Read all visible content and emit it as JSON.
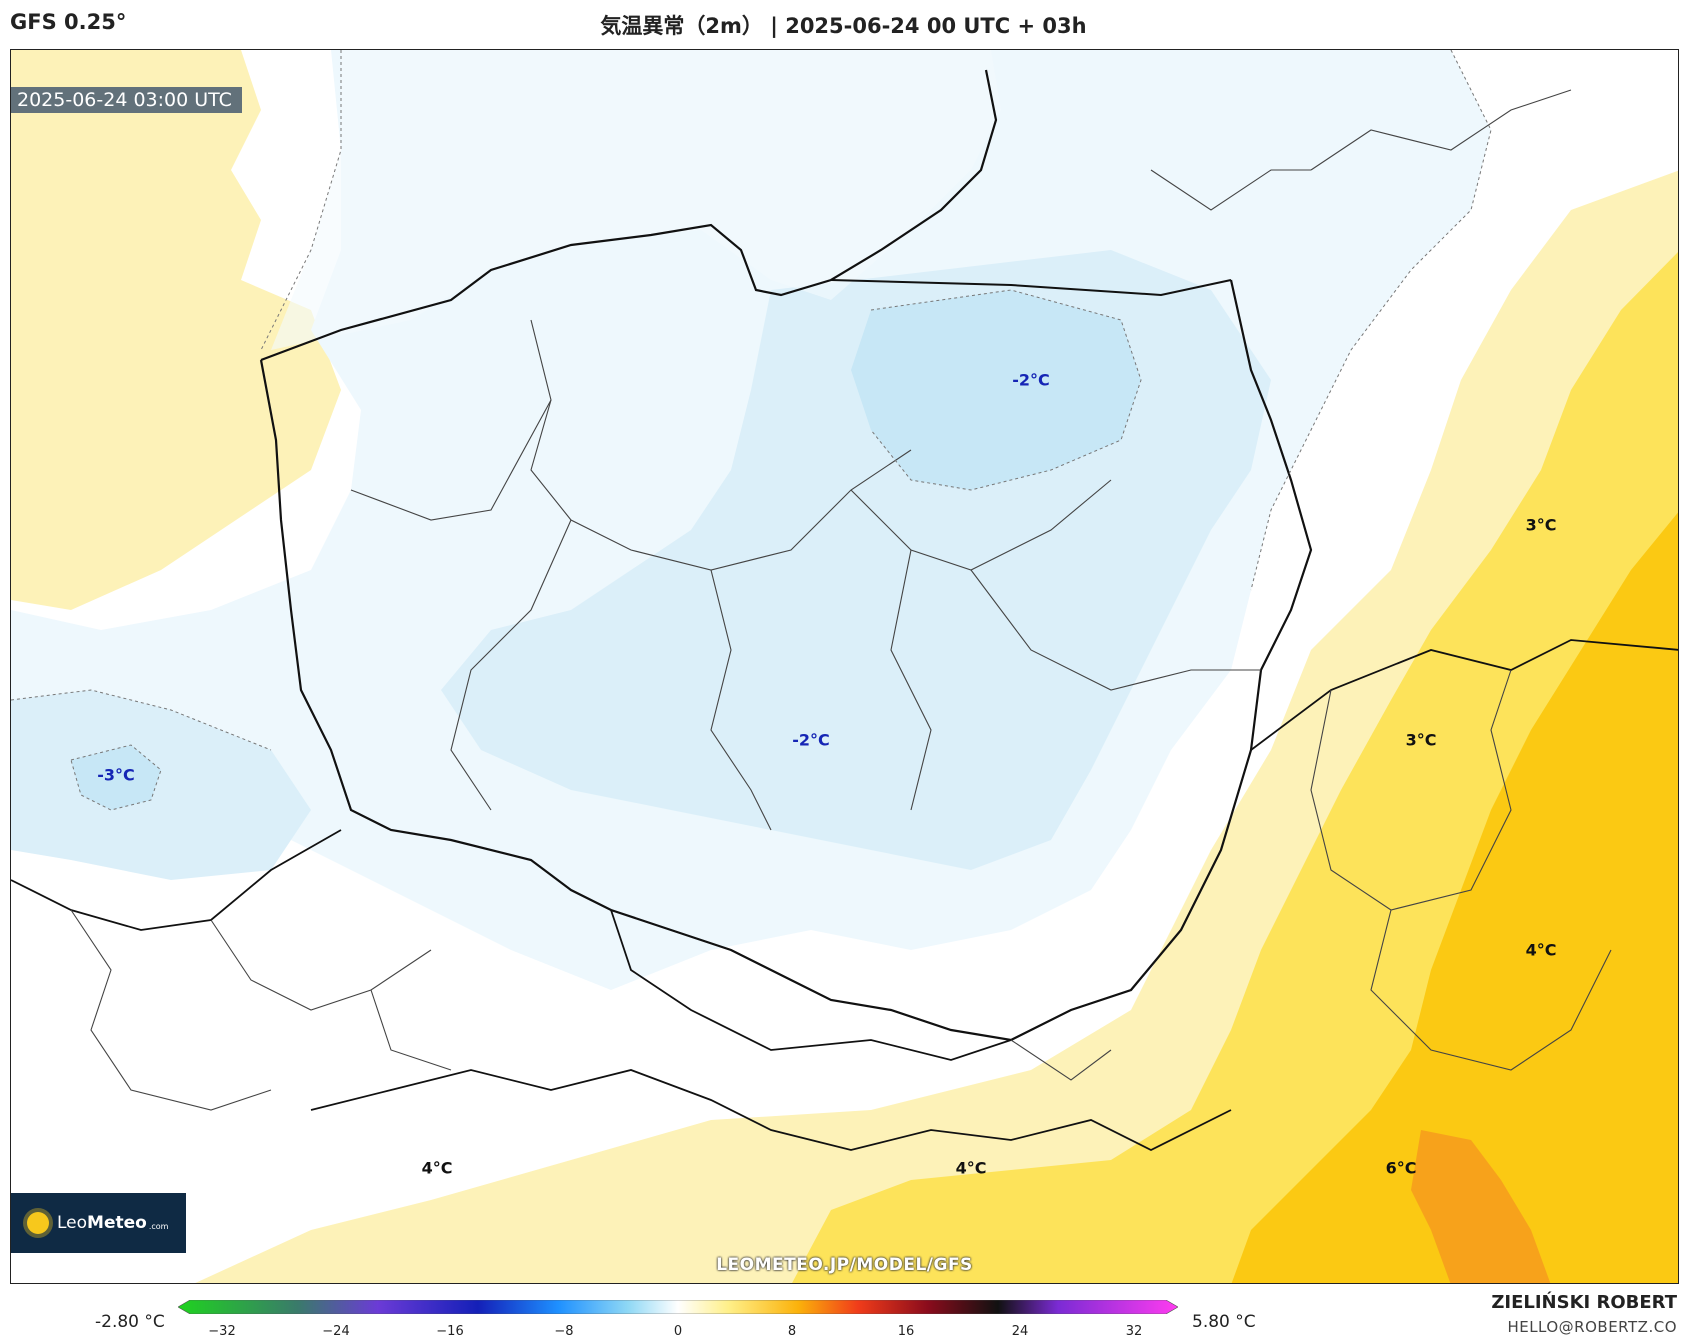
{
  "header": {
    "model": "GFS 0.25°",
    "title": "気温異常（2m） | 2025-06-24 00 UTC + 03h"
  },
  "map": {
    "timestamp": "2025-06-24 03:00 UTC",
    "watermark": "LEOMETEO.JP/MODEL/GFS",
    "logo": {
      "name": "Leo",
      "brand": "Meteo",
      "suffix": ".com"
    },
    "labels": [
      {
        "text": "-2°C",
        "value": -2
      },
      {
        "text": "-2°C",
        "value": -2
      },
      {
        "text": "-3°C",
        "value": -3
      },
      {
        "text": "3°C",
        "value": 3
      },
      {
        "text": "3°C",
        "value": 3
      },
      {
        "text": "4°C",
        "value": 4
      },
      {
        "text": "4°C",
        "value": 4
      },
      {
        "text": "4°C",
        "value": 4
      },
      {
        "text": "6°C",
        "value": 6
      }
    ]
  },
  "legend": {
    "min_label": "-2.80 °C",
    "max_label": "5.80 °C",
    "ticks": [
      "−32",
      "−24",
      "−16",
      "−8",
      "0",
      "8",
      "16",
      "24",
      "32"
    ],
    "colors": {
      "cold_light": "#eef8fd",
      "cold_mid": "#dbeff9",
      "cold_strong": "#c7e7f6",
      "warm_light": "#fdf2b8",
      "warm_mid": "#fde35a",
      "warm_strong": "#fbc913",
      "warm_max": "#f7a21b"
    }
  },
  "footer": {
    "author": "ZIELIŃSKI ROBERT",
    "email": "HELLO@ROBERTZ.CO"
  }
}
